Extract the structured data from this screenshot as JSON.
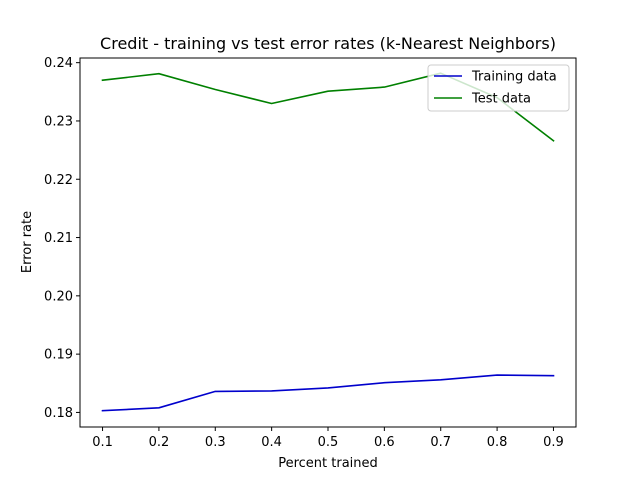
{
  "chart_data": {
    "type": "line",
    "title": "Credit - training vs test error rates (k-Nearest Neighbors)",
    "xlabel": "Percent trained",
    "ylabel": "Error rate",
    "x": [
      0.1,
      0.2,
      0.3,
      0.4,
      0.5,
      0.6,
      0.7,
      0.8,
      0.9
    ],
    "x_ticks": [
      "0.1",
      "0.2",
      "0.3",
      "0.4",
      "0.5",
      "0.6",
      "0.7",
      "0.8",
      "0.9"
    ],
    "y_ticks": [
      "0.18",
      "0.19",
      "0.20",
      "0.21",
      "0.22",
      "0.23",
      "0.24"
    ],
    "xlim": [
      0.06,
      0.94
    ],
    "ylim": [
      0.1775,
      0.2408
    ],
    "grid": false,
    "legend_position": "top-right",
    "series": [
      {
        "name": "Training data",
        "color": "#0000cc",
        "values": [
          0.1803,
          0.1808,
          0.1836,
          0.1837,
          0.1842,
          0.1851,
          0.1856,
          0.1864,
          0.1863
        ]
      },
      {
        "name": "Test data",
        "color": "#008000",
        "values": [
          0.237,
          0.2381,
          0.2354,
          0.233,
          0.2351,
          0.2358,
          0.2382,
          0.234,
          0.2266
        ]
      }
    ]
  }
}
